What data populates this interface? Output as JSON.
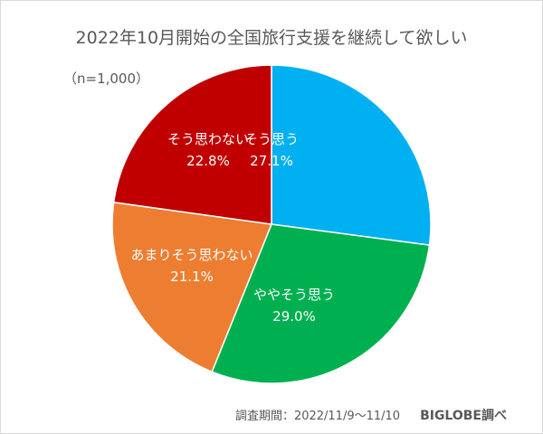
{
  "chart_data": {
    "type": "pie",
    "title": "2022年10月開始の全国旅行支援を継続して欲しい",
    "sample": "（n=1,000）",
    "start_angle": "12 o'clock, clockwise",
    "categories": [
      "そう思う",
      "ややそう思う",
      "あまりそう思わない",
      "そう思わない"
    ],
    "values": [
      27.1,
      29.0,
      21.1,
      22.8
    ],
    "labels": [
      "27.1%",
      "29.0%",
      "21.1%",
      "22.8%"
    ],
    "colors": [
      "#00b0f0",
      "#00b050",
      "#ed7d31",
      "#c00000"
    ],
    "legend": "none (data labels inside slices)"
  },
  "footer": {
    "period": "調査期間：2022/11/9〜11/10",
    "source": "BIGLOBE調べ"
  }
}
